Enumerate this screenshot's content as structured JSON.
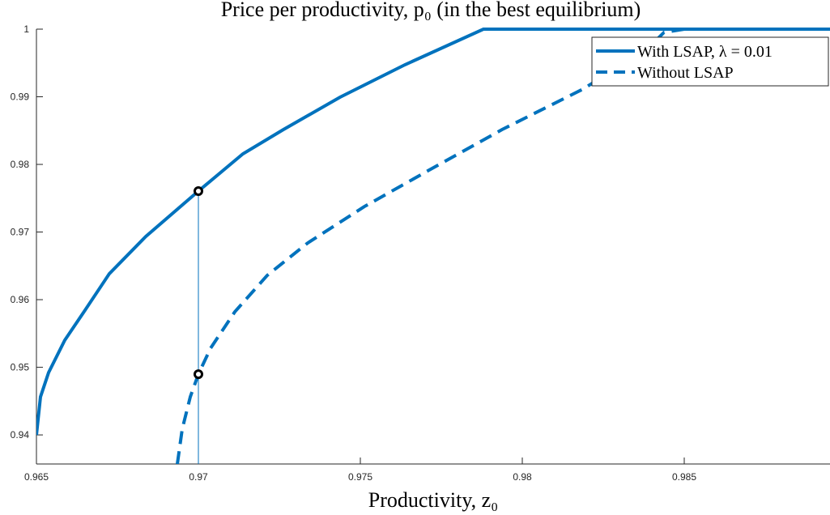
{
  "chart_data": {
    "type": "line",
    "title": "Price per productivity, p₀ (in the best equilibrium)",
    "x_label": "Productivity, z₀",
    "xlim": [
      0.965,
      0.9895
    ],
    "ylim": [
      0.9357,
      1
    ],
    "xticks": [
      0.965,
      0.97,
      0.975,
      0.98,
      0.985
    ],
    "yticks": [
      0.94,
      0.95,
      0.96,
      0.97,
      0.98,
      0.99,
      1
    ],
    "legend": "top-right",
    "series": [
      {
        "name": "With LSAP, λ = 0.01",
        "color": "#0072bd",
        "dash": false,
        "x": [
          0.965,
          0.965125,
          0.965375,
          0.965875,
          0.9665,
          0.96725,
          0.968375,
          0.97,
          0.971375,
          0.972625,
          0.974375,
          0.976375,
          0.9788,
          0.9895
        ],
        "values": [
          0.94,
          0.94563,
          0.94922,
          0.95401,
          0.95844,
          0.96383,
          0.96934,
          0.97605,
          0.98156,
          0.98515,
          0.98994,
          0.99473,
          1,
          1
        ]
      },
      {
        "name": "Without LSAP",
        "color": "#0072bd",
        "dash": true,
        "x": [
          0.96935,
          0.9695,
          0.96975,
          0.97,
          0.970375,
          0.971125,
          0.972125,
          0.973375,
          0.975125,
          0.977125,
          0.979375,
          0.981875,
          0.983875,
          0.984375,
          0.985,
          0.9895
        ],
        "values": [
          0.93569,
          0.94084,
          0.94563,
          0.94898,
          0.95281,
          0.9582,
          0.96359,
          0.96838,
          0.97377,
          0.97916,
          0.98515,
          0.99114,
          0.99713,
          0.99952,
          1,
          1
        ]
      }
    ],
    "markers": {
      "x": [
        0.97,
        0.97
      ],
      "values": [
        0.97605,
        0.94898
      ]
    }
  }
}
